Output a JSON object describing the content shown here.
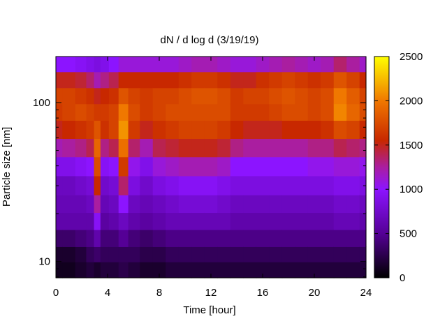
{
  "chart_data": {
    "type": "heatmap",
    "title": "dN / d log d (3/19/19)",
    "xlabel": "Time [hour]",
    "ylabel": "Particle size [nm]",
    "xlim": [
      0,
      24
    ],
    "x_ticks": [
      0,
      4,
      8,
      12,
      16,
      20,
      24
    ],
    "ylim": [
      7.9,
      195
    ],
    "y_scale": "log",
    "y_ticks": [
      10,
      100
    ],
    "colorbar": {
      "range": [
        0,
        2500
      ],
      "ticks": [
        0,
        500,
        1000,
        1500,
        2000,
        2500
      ],
      "palette": "black-purple-red-orange-yellow"
    },
    "time_hours": [
      0,
      1,
      2,
      2.7,
      3.2,
      3.7,
      4.5,
      5.2,
      6,
      7,
      8,
      9,
      10,
      11,
      12,
      13,
      14,
      15,
      16,
      17,
      18,
      19,
      20,
      21,
      22,
      23,
      24
    ],
    "size_nm": [
      9,
      11,
      14,
      18,
      23,
      30,
      40,
      52,
      68,
      88,
      110,
      140,
      175
    ],
    "values": [
      [
        100,
        150,
        350,
        600,
        650,
        700,
        900,
        1200,
        1500,
        1650,
        1700,
        1500,
        1000
      ],
      [
        100,
        150,
        350,
        600,
        650,
        700,
        900,
        1250,
        1550,
        1700,
        1700,
        1500,
        1000
      ],
      [
        150,
        200,
        400,
        600,
        650,
        750,
        950,
        1300,
        1600,
        1750,
        1650,
        1450,
        950
      ],
      [
        200,
        300,
        450,
        600,
        700,
        800,
        1000,
        1400,
        1650,
        1700,
        1600,
        1350,
        900
      ],
      [
        150,
        350,
        600,
        950,
        1250,
        1550,
        1750,
        1900,
        1800,
        1650,
        1500,
        1200,
        850
      ],
      [
        200,
        300,
        400,
        550,
        650,
        750,
        950,
        1300,
        1600,
        1650,
        1550,
        1300,
        900
      ],
      [
        200,
        300,
        400,
        600,
        700,
        800,
        1000,
        1400,
        1700,
        1700,
        1600,
        1400,
        1000
      ],
      [
        250,
        300,
        500,
        700,
        1000,
        1350,
        1650,
        1950,
        2100,
        2000,
        1800,
        1550,
        1100
      ],
      [
        200,
        300,
        400,
        600,
        700,
        850,
        1050,
        1350,
        1650,
        1750,
        1700,
        1550,
        1100
      ],
      [
        150,
        250,
        350,
        550,
        650,
        750,
        900,
        1200,
        1500,
        1650,
        1650,
        1550,
        1100
      ],
      [
        150,
        250,
        400,
        600,
        700,
        850,
        1100,
        1400,
        1600,
        1700,
        1700,
        1550,
        1100
      ],
      [
        200,
        300,
        450,
        650,
        750,
        900,
        1150,
        1450,
        1650,
        1750,
        1700,
        1550,
        1100
      ],
      [
        200,
        300,
        450,
        650,
        800,
        950,
        1200,
        1500,
        1700,
        1750,
        1750,
        1600,
        1150
      ],
      [
        200,
        300,
        450,
        650,
        800,
        950,
        1200,
        1500,
        1700,
        1750,
        1800,
        1650,
        1200
      ],
      [
        200,
        300,
        450,
        650,
        800,
        950,
        1200,
        1500,
        1700,
        1750,
        1800,
        1650,
        1200
      ],
      [
        200,
        300,
        450,
        650,
        750,
        900,
        1150,
        1450,
        1650,
        1750,
        1750,
        1600,
        1150
      ],
      [
        200,
        300,
        450,
        600,
        700,
        850,
        1000,
        1300,
        1550,
        1650,
        1650,
        1500,
        1100
      ],
      [
        200,
        300,
        450,
        600,
        700,
        850,
        1000,
        1250,
        1500,
        1650,
        1700,
        1500,
        1100
      ],
      [
        200,
        300,
        450,
        600,
        700,
        850,
        1000,
        1250,
        1500,
        1650,
        1700,
        1600,
        1150
      ],
      [
        200,
        300,
        450,
        600,
        700,
        850,
        1000,
        1250,
        1500,
        1700,
        1750,
        1650,
        1200
      ],
      [
        200,
        300,
        450,
        600,
        700,
        850,
        1000,
        1250,
        1550,
        1750,
        1800,
        1700,
        1250
      ],
      [
        200,
        300,
        450,
        600,
        700,
        850,
        1000,
        1250,
        1550,
        1750,
        1750,
        1650,
        1200
      ],
      [
        200,
        300,
        450,
        600,
        700,
        850,
        1050,
        1300,
        1550,
        1700,
        1700,
        1600,
        1150
      ],
      [
        200,
        300,
        450,
        600,
        700,
        850,
        1050,
        1300,
        1600,
        1750,
        1750,
        1650,
        1200
      ],
      [
        200,
        300,
        450,
        650,
        750,
        900,
        1100,
        1400,
        1750,
        2050,
        2000,
        1800,
        1350
      ],
      [
        200,
        300,
        450,
        650,
        750,
        900,
        1100,
        1350,
        1700,
        1900,
        1850,
        1700,
        1250
      ],
      [
        200,
        300,
        450,
        600,
        700,
        850,
        1050,
        1300,
        1550,
        1750,
        1700,
        1550,
        1150
      ]
    ]
  }
}
